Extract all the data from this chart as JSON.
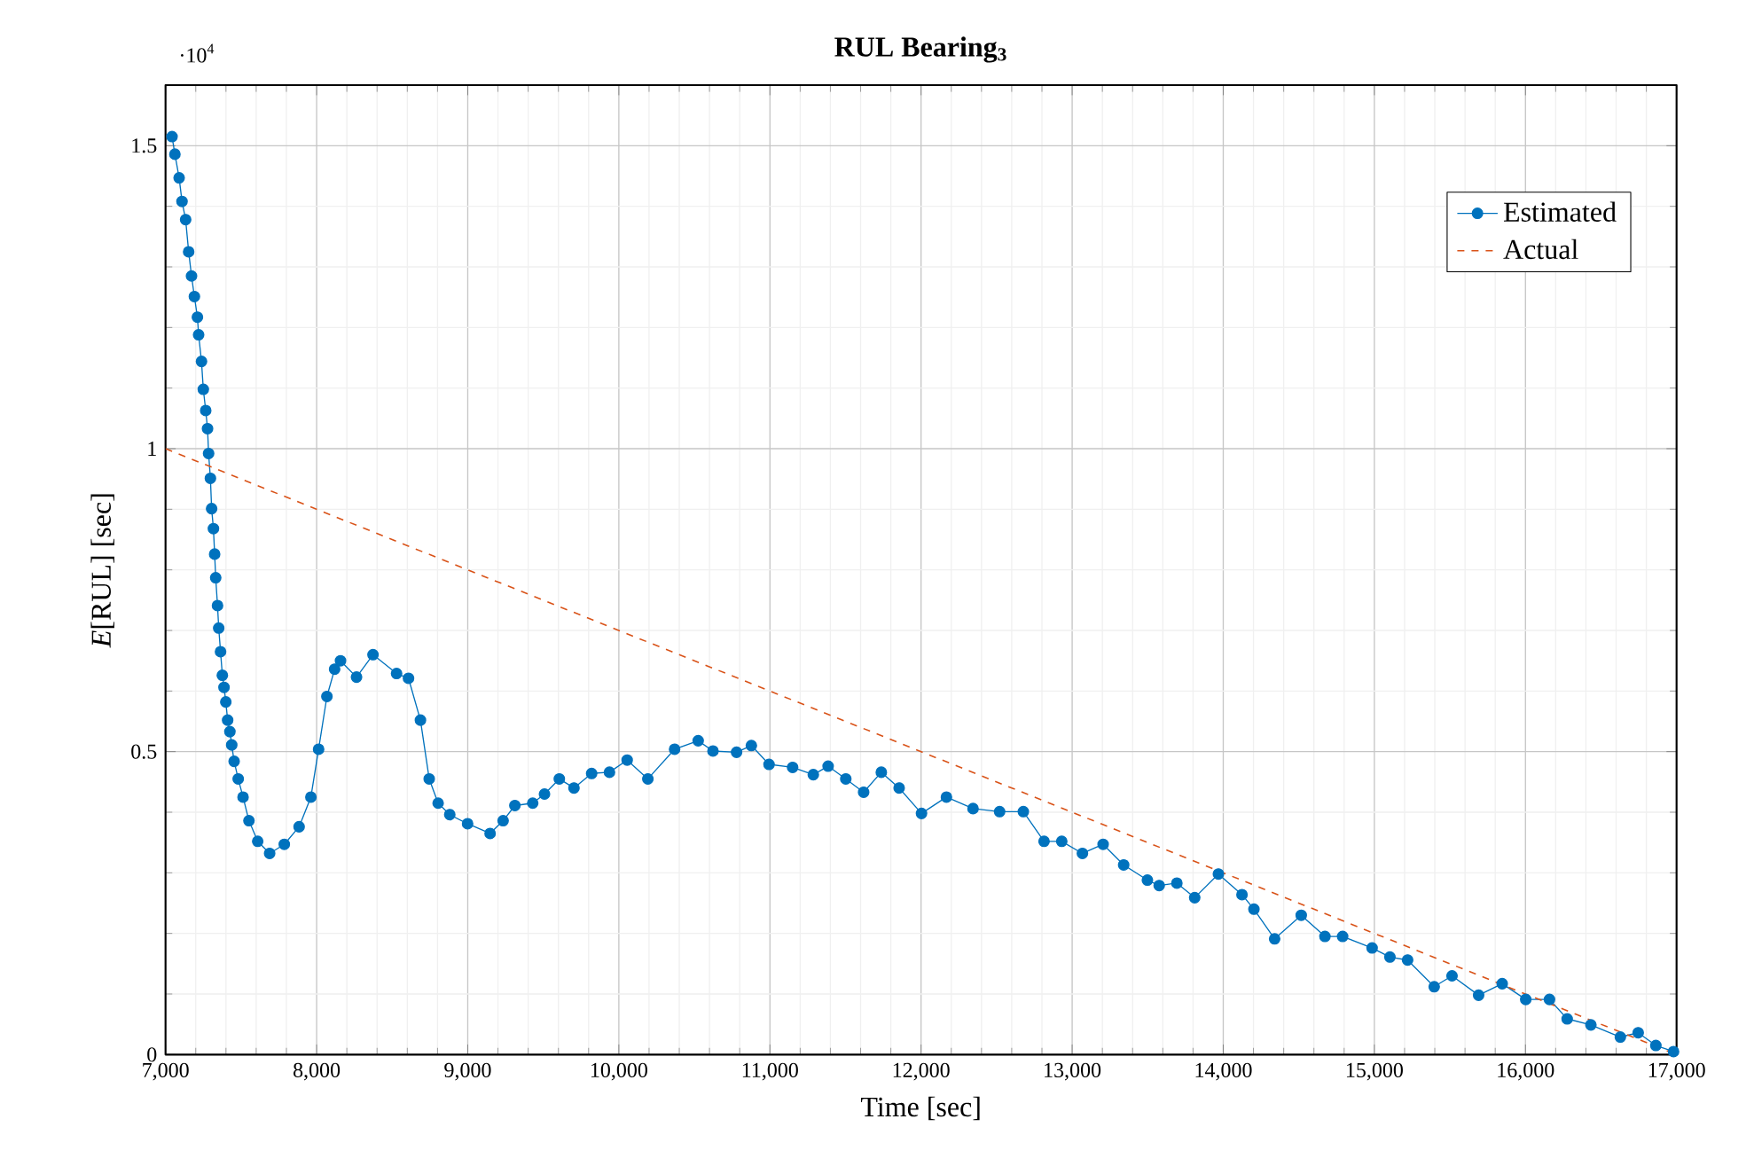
{
  "chart_data": {
    "type": "line",
    "title": "RUL Bearing$_{3}$",
    "xlabel": "Time [sec]",
    "ylabel": "*E*[RUL] [sec]",
    "annotations": [
      "·10$^{4}$"
    ],
    "xlim": [
      7000,
      17000
    ],
    "ylim": [
      0,
      1.6
    ],
    "xticks": [
      {
        "value": 7000,
        "label": "7,000"
      },
      {
        "value": 8000,
        "label": "8,000"
      },
      {
        "value": 9000,
        "label": "9,000"
      },
      {
        "value": 10000,
        "label": "10,000"
      },
      {
        "value": 11000,
        "label": "11,000"
      },
      {
        "value": 12000,
        "label": "12,000"
      },
      {
        "value": 13000,
        "label": "13,000"
      },
      {
        "value": 14000,
        "label": "14,000"
      },
      {
        "value": 15000,
        "label": "15,000"
      },
      {
        "value": 16000,
        "label": "16,000"
      },
      {
        "value": 17000,
        "label": "17,000"
      }
    ],
    "yticks": [
      0,
      0.5,
      1,
      1.5
    ],
    "grid": true,
    "legend": "top right",
    "series": [
      {
        "name": "Estimated",
        "color": "#0072bd",
        "marker": "circle",
        "line_style": "solid",
        "x": [
          7043,
          7062,
          7090,
          7109,
          7133,
          7153,
          7172,
          7191,
          7211,
          7219,
          7238,
          7250,
          7266,
          7278,
          7285,
          7297,
          7305,
          7317,
          7325,
          7332,
          7344,
          7352,
          7364,
          7376,
          7387,
          7399,
          7411,
          7426,
          7438,
          7454,
          7481,
          7513,
          7552,
          7610,
          7689,
          7786,
          7884,
          7962,
          8013,
          8068,
          8119,
          8158,
          8264,
          8373,
          8529,
          8608,
          8687,
          8745,
          8804,
          8881,
          8999,
          9148,
          9234,
          9312,
          9430,
          9508,
          9606,
          9703,
          9820,
          9938,
          10055,
          10192,
          10369,
          10525,
          10623,
          10779,
          10877,
          10994,
          11150,
          11287,
          11385,
          11502,
          11620,
          11737,
          11855,
          12003,
          12168,
          12344,
          12520,
          12677,
          12814,
          12931,
          13068,
          13205,
          13341,
          13498,
          13576,
          13693,
          13811,
          13968,
          14124,
          14203,
          14340,
          14516,
          14673,
          14790,
          14985,
          15103,
          15220,
          15396,
          15514,
          15690,
          15846,
          16002,
          16159,
          16276,
          16433,
          16628,
          16746,
          16863,
          16980
        ],
        "values": [
          1.515,
          1.486,
          1.447,
          1.408,
          1.378,
          1.325,
          1.285,
          1.251,
          1.217,
          1.188,
          1.144,
          1.098,
          1.063,
          1.033,
          0.992,
          0.951,
          0.901,
          0.868,
          0.826,
          0.787,
          0.741,
          0.704,
          0.665,
          0.626,
          0.606,
          0.582,
          0.552,
          0.533,
          0.511,
          0.484,
          0.455,
          0.425,
          0.386,
          0.352,
          0.332,
          0.347,
          0.376,
          0.425,
          0.504,
          0.591,
          0.636,
          0.65,
          0.623,
          0.66,
          0.629,
          0.621,
          0.552,
          0.455,
          0.415,
          0.396,
          0.381,
          0.365,
          0.386,
          0.411,
          0.415,
          0.43,
          0.455,
          0.44,
          0.464,
          0.466,
          0.486,
          0.455,
          0.504,
          0.518,
          0.501,
          0.499,
          0.51,
          0.479,
          0.474,
          0.462,
          0.476,
          0.455,
          0.433,
          0.466,
          0.44,
          0.398,
          0.425,
          0.406,
          0.401,
          0.401,
          0.352,
          0.352,
          0.332,
          0.347,
          0.313,
          0.288,
          0.279,
          0.283,
          0.259,
          0.298,
          0.264,
          0.24,
          0.191,
          0.23,
          0.195,
          0.195,
          0.176,
          0.161,
          0.156,
          0.112,
          0.13,
          0.098,
          0.117,
          0.091,
          0.091,
          0.059,
          0.049,
          0.029,
          0.036,
          0.015,
          0.005
        ]
      },
      {
        "name": "Actual",
        "color": "#d95319",
        "marker": "none",
        "line_style": "dashed",
        "x": [
          7000,
          17000
        ],
        "values": [
          1,
          0
        ]
      }
    ]
  }
}
